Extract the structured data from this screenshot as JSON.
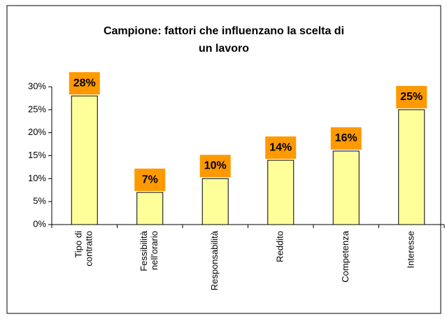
{
  "chart_data": {
    "type": "bar",
    "title": "Campione: fattori che influenzano la scelta di\nun lavoro",
    "categories": [
      "Tipo di\ncontratto",
      "Fessibilità\nnell'orario",
      "Responsabilità",
      "Reddito",
      "Competenza",
      "Interesse"
    ],
    "values": [
      28,
      7,
      10,
      14,
      16,
      25
    ],
    "value_labels": [
      "28%",
      "7%",
      "10%",
      "14%",
      "16%",
      "25%"
    ],
    "color": "#ffff99",
    "label_color": "#ff9900",
    "ylim": [
      0,
      30
    ],
    "yticks": [
      {
        "value": 0,
        "label": "0%"
      },
      {
        "value": 5,
        "label": "5%"
      },
      {
        "value": 10,
        "label": "10%"
      },
      {
        "value": 15,
        "label": "15%"
      },
      {
        "value": 20,
        "label": "20%"
      },
      {
        "value": 25,
        "label": "25%"
      },
      {
        "value": 30,
        "label": "30%"
      }
    ],
    "grid": false
  }
}
